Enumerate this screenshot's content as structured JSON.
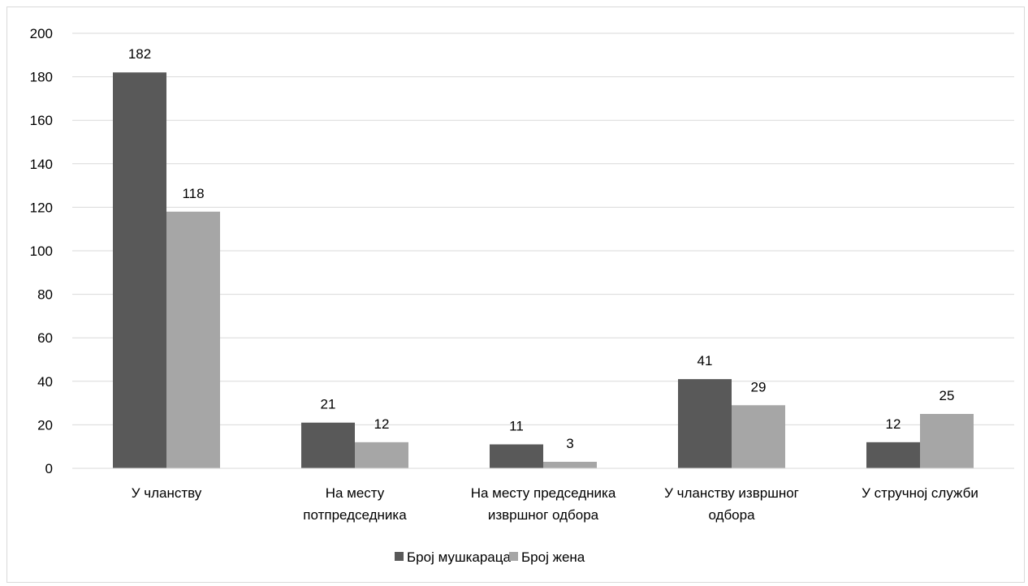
{
  "chart_data": {
    "type": "bar",
    "title": "",
    "xlabel": "",
    "ylabel": "",
    "ylim": [
      0,
      200
    ],
    "yticks": [
      0,
      20,
      40,
      60,
      80,
      100,
      120,
      140,
      160,
      180,
      200
    ],
    "grid": true,
    "legend_position": "bottom",
    "categories": [
      [
        "У чланству"
      ],
      [
        "На месту",
        "потпредседника"
      ],
      [
        "На месту председника",
        "извршног одбора"
      ],
      [
        "У чланству извршног",
        "одбора"
      ],
      [
        "У стручној служби"
      ]
    ],
    "series": [
      {
        "name": "Број мушкараца",
        "color": "#595959",
        "values": [
          182,
          21,
          11,
          41,
          12
        ]
      },
      {
        "name": "Број жена",
        "color": "#a6a6a6",
        "values": [
          118,
          12,
          3,
          29,
          25
        ]
      }
    ],
    "gridline_color": "#d9d9d9"
  }
}
